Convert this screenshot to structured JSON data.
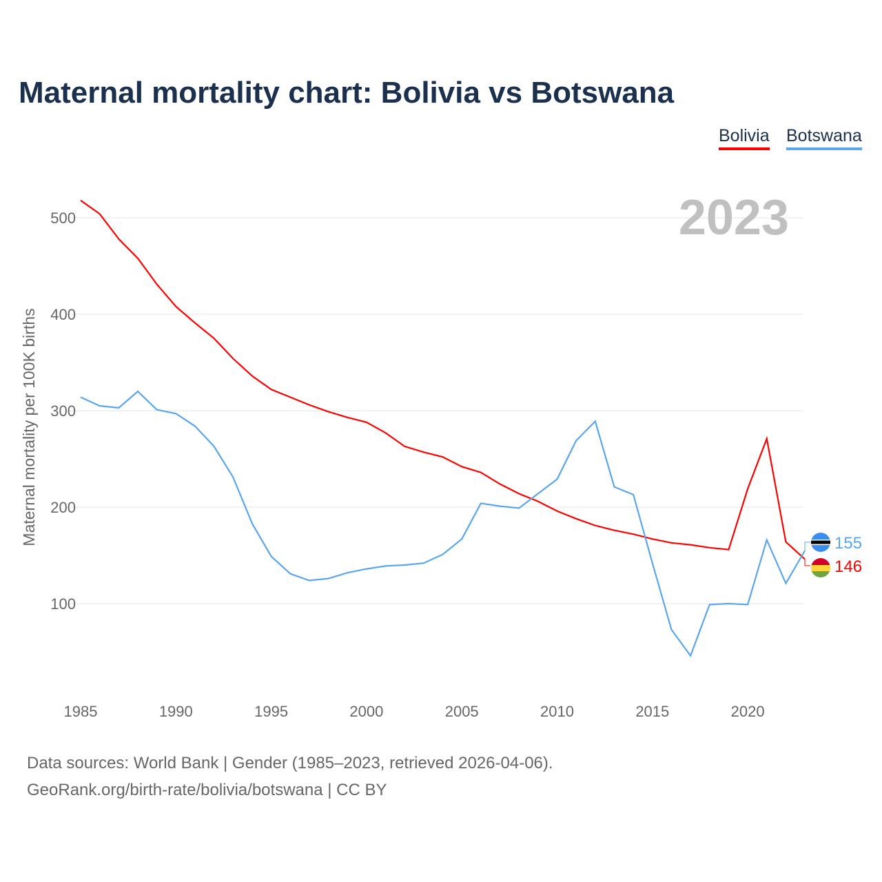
{
  "title": "Maternal mortality chart: Bolivia vs Botswana",
  "footer": {
    "line1": "Data sources: World Bank | Gender (1985–2023, retrieved 2026-04-06).",
    "line2": "GeoRank.org/birth-rate/bolivia/botswana | CC BY"
  },
  "chart_data": {
    "type": "line",
    "title": "Maternal mortality chart: Bolivia vs Botswana",
    "year_label": "2023",
    "xlabel": "",
    "ylabel": "Maternal mortality per 100K births",
    "xlim": [
      1985,
      2023
    ],
    "ylim": [
      0,
      540
    ],
    "xticks": [
      1985,
      1990,
      1995,
      2000,
      2005,
      2010,
      2015,
      2020
    ],
    "yticks": [
      100,
      200,
      300,
      400,
      500
    ],
    "grid": true,
    "legend_placement": "top-right",
    "x": [
      1985,
      1986,
      1987,
      1988,
      1989,
      1990,
      1991,
      1992,
      1993,
      1994,
      1995,
      1996,
      1997,
      1998,
      1999,
      2000,
      2001,
      2002,
      2003,
      2004,
      2005,
      2006,
      2007,
      2008,
      2009,
      2010,
      2011,
      2012,
      2013,
      2014,
      2015,
      2016,
      2017,
      2018,
      2019,
      2020,
      2021,
      2022,
      2023
    ],
    "series": [
      {
        "name": "Bolivia",
        "color": "#ff0000",
        "end_label": "146",
        "values": [
          518,
          504,
          478,
          458,
          431,
          408,
          391,
          375,
          354,
          336,
          322,
          314,
          306,
          299,
          293,
          288,
          277,
          263,
          257,
          252,
          242,
          236,
          224,
          214,
          206,
          196,
          188,
          181,
          176,
          172,
          167,
          163,
          161,
          158,
          156,
          219,
          271,
          164,
          146
        ]
      },
      {
        "name": "Botswana",
        "color": "#5aa5ec",
        "end_label": "155",
        "values": [
          314,
          305,
          303,
          320,
          301,
          297,
          284,
          263,
          231,
          183,
          149,
          131,
          124,
          126,
          132,
          136,
          139,
          140,
          142,
          151,
          167,
          204,
          201,
          199,
          214,
          229,
          269,
          289,
          221,
          213,
          142,
          73,
          46,
          99,
          100,
          99,
          166,
          121,
          155
        ]
      }
    ]
  }
}
